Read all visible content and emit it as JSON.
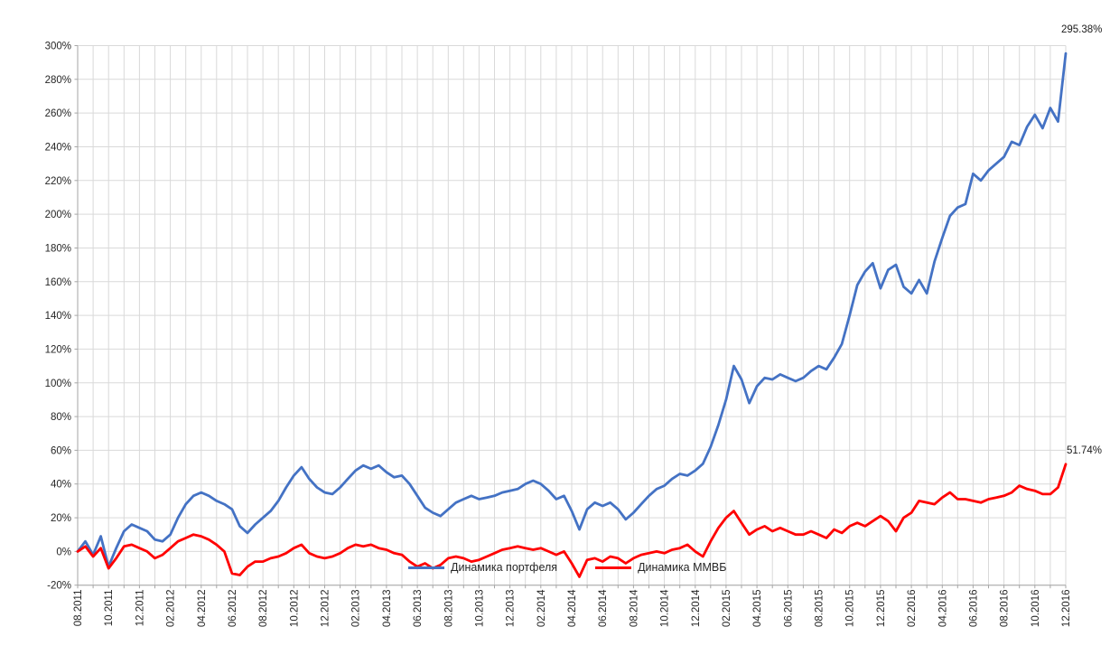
{
  "chart_data": {
    "type": "line",
    "title": "",
    "x_months_total": 64,
    "points_per_month": 2,
    "x_start_label": "08.2011",
    "x_end_label": "12.2016",
    "y_axis": {
      "min": -20,
      "max": 300,
      "step": 20,
      "unit": "%"
    },
    "grid": true,
    "legend_position": "bottom-center-inside",
    "colors": {
      "grid": "#d9d9d9",
      "axis": "#a6a6a6",
      "text": "#262626"
    },
    "y_tick_labels": [
      "300%",
      "280%",
      "260%",
      "240%",
      "220%",
      "200%",
      "180%",
      "160%",
      "140%",
      "120%",
      "100%",
      "80%",
      "60%",
      "40%",
      "20%",
      "0%",
      "-20%"
    ],
    "x_tick_labels": [
      "08.2011",
      "10.2011",
      "12.2011",
      "02.2012",
      "04.2012",
      "06.2012",
      "08.2012",
      "10.2012",
      "12.2012",
      "02.2013",
      "04.2013",
      "06.2013",
      "08.2013",
      "10.2013",
      "12.2013",
      "02.2014",
      "04.2014",
      "06.2014",
      "08.2014",
      "10.2014",
      "12.2014",
      "02.2015",
      "04.2015",
      "06.2015",
      "08.2015",
      "10.2015",
      "12.2015",
      "02.2016",
      "04.2016",
      "06.2016",
      "08.2016",
      "10.2016",
      "12.2016"
    ],
    "series": [
      {
        "name": "Динамика портфеля",
        "color": "#4472C4",
        "end_label": "295.38%",
        "values": [
          0,
          6,
          -2,
          9,
          -9,
          2,
          12,
          16,
          14,
          12,
          7,
          6,
          10,
          20,
          28,
          33,
          35,
          33,
          30,
          28,
          25,
          15,
          11,
          16,
          20,
          24,
          30,
          38,
          45,
          50,
          43,
          38,
          35,
          34,
          38,
          43,
          48,
          51,
          49,
          51,
          47,
          44,
          45,
          40,
          33,
          26,
          23,
          21,
          25,
          29,
          31,
          33,
          31,
          32,
          33,
          35,
          36,
          37,
          40,
          42,
          40,
          36,
          31,
          33,
          24,
          13,
          25,
          29,
          27,
          29,
          25,
          19,
          23,
          28,
          33,
          37,
          39,
          43,
          46,
          45,
          48,
          52,
          62,
          75,
          90,
          110,
          102,
          88,
          98,
          103,
          102,
          105,
          103,
          101,
          103,
          107,
          110,
          108,
          115,
          123,
          140,
          158,
          166,
          171,
          156,
          167,
          170,
          157,
          153,
          161,
          153,
          172,
          186,
          199,
          204,
          206,
          224,
          220,
          226,
          230,
          234,
          243,
          241,
          252,
          259,
          251,
          263,
          255,
          295.38
        ]
      },
      {
        "name": "Динамика ММВБ",
        "color": "#FF0000",
        "end_label": "51.74%",
        "values": [
          0,
          3,
          -3,
          2,
          -10,
          -4,
          3,
          4,
          2,
          0,
          -4,
          -2,
          2,
          6,
          8,
          10,
          9,
          7,
          4,
          0,
          -13,
          -14,
          -9,
          -6,
          -6,
          -4,
          -3,
          -1,
          2,
          4,
          -1,
          -3,
          -4,
          -3,
          -1,
          2,
          4,
          3,
          4,
          2,
          1,
          -1,
          -2,
          -6,
          -9,
          -7,
          -10,
          -8,
          -4,
          -3,
          -4,
          -6,
          -5,
          -3,
          -1,
          1,
          2,
          3,
          2,
          1,
          2,
          0,
          -2,
          0,
          -7,
          -15,
          -5,
          -4,
          -6,
          -3,
          -4,
          -7,
          -4,
          -2,
          -1,
          0,
          -1,
          1,
          2,
          4,
          0,
          -3,
          6,
          14,
          20,
          24,
          17,
          10,
          13,
          15,
          12,
          14,
          12,
          10,
          10,
          12,
          10,
          8,
          13,
          11,
          15,
          17,
          15,
          18,
          21,
          18,
          12,
          20,
          23,
          30,
          29,
          28,
          32,
          35,
          31,
          31,
          30,
          29,
          31,
          32,
          33,
          35,
          39,
          37,
          36,
          34,
          34,
          38,
          51.74
        ]
      }
    ]
  }
}
